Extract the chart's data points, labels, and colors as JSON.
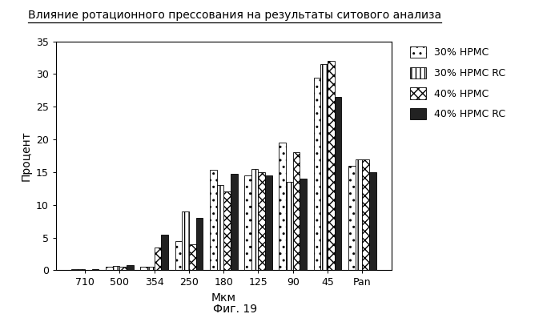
{
  "title": "Влияние ротационного прессования на результаты ситового анализа",
  "xlabel": "Мкм",
  "ylabel": "Процент",
  "caption": "Фиг. 19",
  "categories": [
    "710",
    "500",
    "354",
    "250",
    "180",
    "125",
    "90",
    "45",
    "Pan"
  ],
  "series": [
    {
      "label": "30% HPMC",
      "values": [
        0.2,
        0.5,
        0.5,
        4.5,
        15.3,
        14.5,
        19.5,
        29.5,
        16.0
      ],
      "facecolor": "white",
      "hatch": ".."
    },
    {
      "label": "30% HPMC RC",
      "values": [
        0.2,
        0.7,
        0.5,
        9.0,
        13.0,
        15.5,
        13.5,
        31.5,
        17.0
      ],
      "facecolor": "white",
      "hatch": "|||"
    },
    {
      "label": "40% HPMC",
      "values": [
        0.1,
        0.5,
        3.5,
        4.0,
        12.0,
        15.0,
        18.0,
        32.0,
        17.0
      ],
      "facecolor": "white",
      "hatch": "xxx"
    },
    {
      "label": "40% HPMC RC",
      "values": [
        0.2,
        0.8,
        5.5,
        8.0,
        14.7,
        14.5,
        14.0,
        26.5,
        15.0
      ],
      "facecolor": "#222222",
      "hatch": ""
    }
  ],
  "ylim": [
    0,
    35
  ],
  "yticks": [
    0,
    5,
    10,
    15,
    20,
    25,
    30,
    35
  ],
  "bar_width": 0.2,
  "edgecolor": "black",
  "title_fontsize": 10,
  "axis_label_fontsize": 10,
  "tick_fontsize": 9,
  "legend_fontsize": 9,
  "caption_fontsize": 10
}
